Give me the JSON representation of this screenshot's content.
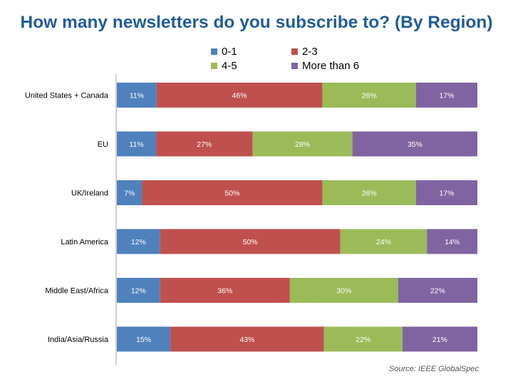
{
  "chart_data": {
    "type": "bar",
    "orientation": "horizontal",
    "stacked": true,
    "title": "How many newsletters do you subscribe to? (By Region)",
    "source": "Source: IEEE GlobalSpec",
    "categories": [
      "United States + Canada",
      "EU",
      "UK/Ireland",
      "Latin America",
      "Middle East/Africa",
      "India/Asia/Russia"
    ],
    "series": [
      {
        "name": "0-1",
        "color": "#4f81bd",
        "values": [
          11,
          11,
          7,
          12,
          12,
          15
        ]
      },
      {
        "name": "2-3",
        "color": "#c0504d",
        "values": [
          46,
          27,
          50,
          50,
          36,
          43
        ]
      },
      {
        "name": "4-5",
        "color": "#9bbb59",
        "values": [
          26,
          28,
          26,
          24,
          30,
          22
        ]
      },
      {
        "name": "More than 6",
        "color": "#8064a2",
        "values": [
          17,
          35,
          17,
          14,
          22,
          21
        ]
      }
    ],
    "value_suffix": "%",
    "legend_position": "top",
    "grid": false
  }
}
